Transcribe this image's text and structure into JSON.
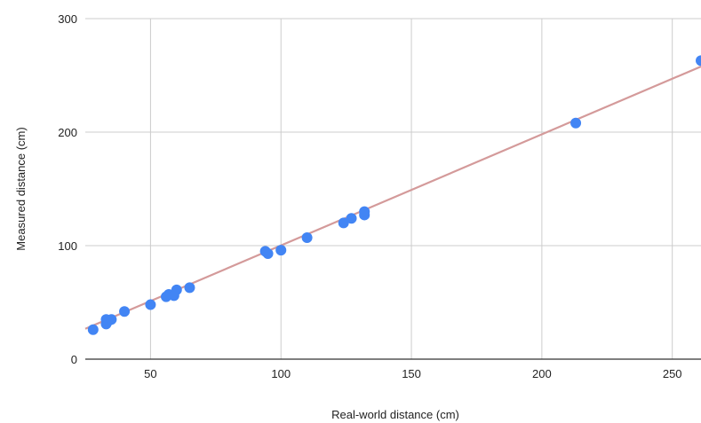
{
  "chart_data": {
    "type": "scatter",
    "title": "",
    "xlabel": "Real-world distance (cm)",
    "ylabel": "Measured distance (cm)",
    "xlim": [
      25,
      261
    ],
    "ylim": [
      0,
      300
    ],
    "x_ticks": [
      "50",
      "100",
      "150",
      "200",
      "250"
    ],
    "y_ticks": [
      "0",
      "100",
      "200",
      "300"
    ],
    "grid": true,
    "legend": "none",
    "series": [
      {
        "points": [
          [
            28,
            26
          ],
          [
            33,
            31
          ],
          [
            33,
            35
          ],
          [
            34,
            34
          ],
          [
            35,
            35
          ],
          [
            40,
            42
          ],
          [
            50,
            48
          ],
          [
            56,
            55
          ],
          [
            57,
            57
          ],
          [
            59,
            56
          ],
          [
            60,
            61
          ],
          [
            65,
            63
          ],
          [
            94,
            95
          ],
          [
            95,
            93
          ],
          [
            100,
            96
          ],
          [
            110,
            107
          ],
          [
            124,
            120
          ],
          [
            127,
            124
          ],
          [
            132,
            127
          ],
          [
            132,
            130
          ],
          [
            213,
            208
          ],
          [
            261,
            263
          ]
        ]
      }
    ],
    "trendline": {
      "slope": 0.9791,
      "intercept": 2.26
    },
    "colors": {
      "points": "#4285f4",
      "trendline": "#d49a9a",
      "grid": "#cccccc",
      "axis": "#333333"
    }
  }
}
